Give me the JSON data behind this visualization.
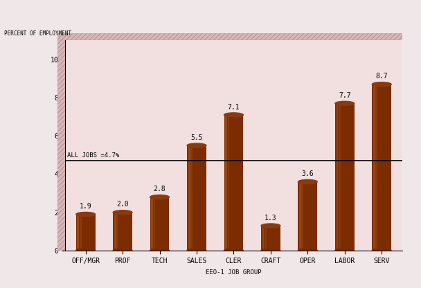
{
  "categories": [
    "OFF/MGR",
    "PROF",
    "TECH",
    "SALES",
    "CLER",
    "CRAFT",
    "OPER",
    "LABOR",
    "SERV"
  ],
  "values": [
    1.9,
    2.0,
    2.8,
    5.5,
    7.1,
    1.3,
    3.6,
    7.7,
    8.7
  ],
  "bar_color_main": "#7B2D00",
  "bar_color_light": "#B05A20",
  "bar_color_top": "#8B3A10",
  "reference_line": 4.7,
  "reference_label": "ALL JOBS =4.7%",
  "ylabel": "PERCENT OF EMPLOYMENT",
  "xlabel": "EEO-1 JOB GROUP",
  "ylim": [
    0,
    11
  ],
  "yticks": [
    0,
    2,
    4,
    6,
    8,
    10
  ],
  "plot_bg": "#F2E0E0",
  "wall_color": "#D8B8B8",
  "fig_bg": "#F0E8E8",
  "bar_width": 0.52,
  "value_fontsize": 7,
  "tick_fontsize": 7,
  "label_fontsize": 6.5
}
